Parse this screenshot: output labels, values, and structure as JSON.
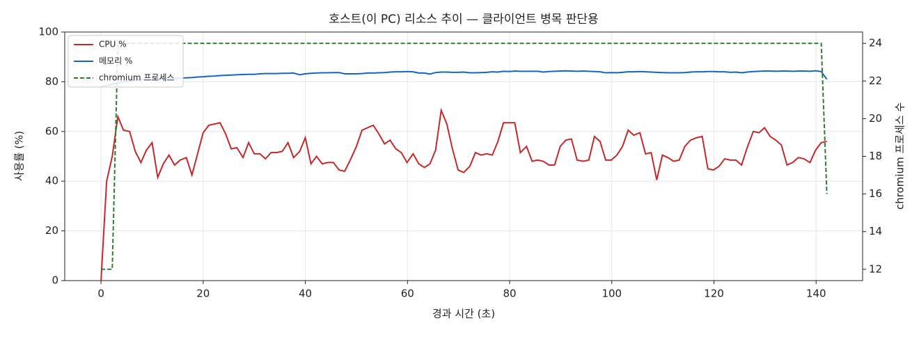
{
  "chart_data": {
    "type": "line",
    "title": "호스트(이 PC) 리소스 추이 — 클라이언트 병목 판단용",
    "xlabel": "경과 시간 (초)",
    "ylabel": "사용률 (%)",
    "y2label": "chromium 프로세스 수",
    "x": [
      0,
      1.1,
      2.2,
      3.3,
      4.4,
      5.6,
      6.7,
      7.8,
      8.9,
      10,
      11.1,
      12.2,
      13.3,
      14.4,
      15.5,
      16.7,
      17.8,
      18.9,
      20,
      21.1,
      22.2,
      23.3,
      24.4,
      25.5,
      26.6,
      27.8,
      28.9,
      30,
      31.1,
      32.2,
      33.3,
      34.4,
      35.5,
      36.6,
      37.7,
      38.9,
      40,
      41.1,
      42.2,
      43.3,
      44.4,
      45.5,
      46.6,
      47.7,
      48.8,
      50,
      51.1,
      52.2,
      53.3,
      54.4,
      55.5,
      56.6,
      57.7,
      58.8,
      59.9,
      61.1,
      62.2,
      63.3,
      64.4,
      65.5,
      66.6,
      67.7,
      68.8,
      69.9,
      71,
      72.2,
      73.3,
      74.4,
      75.5,
      76.6,
      77.7,
      78.8,
      79.9,
      81,
      82.1,
      83.3,
      84.4,
      85.5,
      86.6,
      87.7,
      88.8,
      89.9,
      91,
      92.1,
      93.2,
      94.4,
      95.5,
      96.6,
      97.7,
      98.8,
      99.9,
      101,
      102.1,
      103.2,
      104.3,
      105.5,
      106.6,
      107.7,
      108.8,
      109.9,
      111,
      112.1,
      113.2,
      114.3,
      115.4,
      116.6,
      117.7,
      118.8,
      119.9,
      121,
      122.1,
      123.2,
      124.3,
      125.4,
      126.5,
      127.7,
      128.8,
      129.9,
      131,
      132.1,
      133.2,
      134.3,
      135.4,
      136.5,
      137.6,
      138.8,
      139.9,
      141,
      142.1
    ],
    "series": [
      {
        "name": "CPU %",
        "color": "#c62828",
        "linestyle": "solid",
        "values": [
          0,
          40,
          50,
          66,
          60.5,
          60,
          52,
          47.5,
          52.5,
          55.5,
          41.5,
          47,
          50.5,
          46.5,
          48.5,
          49.5,
          42.5,
          51,
          59.5,
          62.5,
          63,
          63.5,
          59,
          53,
          53.5,
          49.5,
          55.5,
          51,
          51,
          49,
          51.5,
          51.5,
          52,
          55.5,
          49.5,
          52,
          57.5,
          47,
          50,
          47,
          47.5,
          47.5,
          44.5,
          44,
          48.5,
          54,
          60.5,
          61.5,
          62.5,
          59,
          55,
          56.5,
          53,
          51.5,
          47.5,
          51,
          47,
          45.5,
          47,
          52.5,
          68.5,
          63,
          53,
          44.5,
          43.5,
          46,
          51.5,
          50.5,
          51,
          50.5,
          56,
          63.5,
          63.5,
          63.5,
          51.5,
          54,
          48,
          48.5,
          48,
          46.5,
          46.5,
          54,
          56.5,
          57,
          48.5,
          48,
          48.5,
          58,
          56,
          48.5,
          48.5,
          50.5,
          54,
          60.5,
          58.5,
          59.5,
          51,
          51.5,
          40.5,
          50.5,
          49.5,
          48,
          48.5,
          54,
          56.5,
          57.5,
          58,
          45,
          44.5,
          46,
          49,
          48.5,
          48.5,
          46.5,
          53.5,
          60,
          59.5,
          61.5,
          58,
          56.5,
          54.5,
          46.5,
          47.5,
          49.5,
          49,
          47.5,
          52.5,
          55.5,
          56
        ]
      },
      {
        "name": "메모리 %",
        "color": "#1565c0",
        "linestyle": "solid",
        "values": [
          78,
          78.5,
          79,
          79.5,
          80,
          80.3,
          80.6,
          80.8,
          81,
          81,
          81.2,
          81.2,
          81.3,
          81.3,
          81.4,
          81.6,
          81.7,
          81.9,
          82,
          82.2,
          82.3,
          82.5,
          82.6,
          82.7,
          82.8,
          82.9,
          83,
          83,
          83.2,
          83.3,
          83.3,
          83.3,
          83.4,
          83.4,
          83.5,
          82.8,
          83.2,
          83.4,
          83.5,
          83.6,
          83.6,
          83.7,
          83.7,
          83.2,
          83.2,
          83.2,
          83.3,
          83.5,
          83.5,
          83.6,
          83.7,
          83.9,
          84,
          84,
          84.1,
          84,
          83.5,
          83.5,
          83.1,
          83.7,
          83.9,
          83.9,
          83.8,
          83.8,
          83.9,
          83.6,
          83.6,
          83.7,
          83.8,
          84,
          83.9,
          84.2,
          84.1,
          84.3,
          84.2,
          84.2,
          84.2,
          84.2,
          83.9,
          84.1,
          84.2,
          84.3,
          84.4,
          84.3,
          84.2,
          84.3,
          84.2,
          84.1,
          84,
          83.6,
          83.7,
          83.6,
          83.8,
          84,
          84,
          84.1,
          84,
          83.9,
          83.8,
          83.7,
          83.6,
          83.6,
          83.6,
          83.7,
          83.9,
          84,
          84,
          84.1,
          84.1,
          84,
          84,
          83.8,
          83.9,
          83.6,
          83.9,
          84.1,
          84.2,
          84.3,
          84.3,
          84.2,
          84.3,
          84.3,
          84.2,
          84.3,
          84.3,
          84.2,
          84.4,
          84.1,
          81
        ]
      },
      {
        "name": "chromium 프로세스",
        "color": "#2e7d32",
        "linestyle": "dashed",
        "axis": "y2",
        "values": [
          12,
          12,
          12,
          24,
          24,
          24,
          24,
          24,
          24,
          24,
          24,
          24,
          24,
          24,
          24,
          24,
          24,
          24,
          24,
          24,
          24,
          24,
          24,
          24,
          24,
          24,
          24,
          24,
          24,
          24,
          24,
          24,
          24,
          24,
          24,
          24,
          24,
          24,
          24,
          24,
          24,
          24,
          24,
          24,
          24,
          24,
          24,
          24,
          24,
          24,
          24,
          24,
          24,
          24,
          24,
          24,
          24,
          24,
          24,
          24,
          24,
          24,
          24,
          24,
          24,
          24,
          24,
          24,
          24,
          24,
          24,
          24,
          24,
          24,
          24,
          24,
          24,
          24,
          24,
          24,
          24,
          24,
          24,
          24,
          24,
          24,
          24,
          24,
          24,
          24,
          24,
          24,
          24,
          24,
          24,
          24,
          24,
          24,
          24,
          24,
          24,
          24,
          24,
          24,
          24,
          24,
          24,
          24,
          24,
          24,
          24,
          24,
          24,
          24,
          24,
          24,
          24,
          24,
          24,
          24,
          24,
          24,
          24,
          24,
          24,
          24,
          24,
          24,
          16
        ]
      }
    ],
    "xlim": [
      -7.1,
      149.1
    ],
    "xticks": [
      0,
      20,
      40,
      60,
      80,
      100,
      120,
      140
    ],
    "ylim": [
      0,
      100
    ],
    "yticks": [
      0,
      20,
      40,
      60,
      80,
      100
    ],
    "y2lim": [
      11.4,
      24.6
    ],
    "y2ticks": [
      12,
      14,
      16,
      18,
      20,
      22,
      24
    ],
    "grid": true,
    "legend": "upper left"
  }
}
